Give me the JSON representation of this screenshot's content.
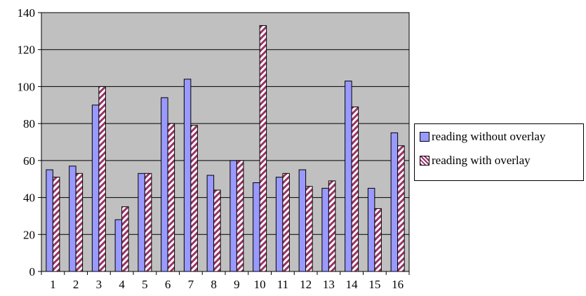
{
  "chart_data": {
    "type": "bar",
    "title": "",
    "xlabel": "",
    "ylabel": "",
    "ylim": [
      0,
      140
    ],
    "yticks": [
      0,
      20,
      40,
      60,
      80,
      100,
      120,
      140
    ],
    "grid": true,
    "legend_position": "right",
    "categories": [
      "1",
      "2",
      "3",
      "4",
      "5",
      "6",
      "7",
      "8",
      "9",
      "10",
      "11",
      "12",
      "13",
      "14",
      "15",
      "16"
    ],
    "series": [
      {
        "name": "reading without overlay",
        "color": "#9999ff",
        "pattern": "solid",
        "values": [
          55,
          57,
          90,
          28,
          53,
          94,
          104,
          52,
          60,
          48,
          51,
          55,
          45,
          103,
          45,
          75
        ]
      },
      {
        "name": "reading with overlay",
        "color": "#993366",
        "pattern": "diagonal-stripes",
        "values": [
          51,
          53,
          100,
          35,
          53,
          80,
          79,
          44,
          60,
          133,
          53,
          46,
          49,
          89,
          34,
          68
        ]
      }
    ]
  },
  "colors": {
    "plot_background": "#c0c0c0",
    "gridline": "#000000",
    "stripe_background": "#ffffff"
  }
}
